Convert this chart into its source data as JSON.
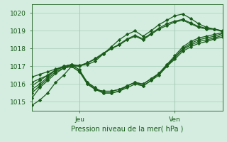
{
  "title": "Pression niveau de la mer( hPa )",
  "ylim": [
    1014.5,
    1020.5
  ],
  "yticks": [
    1015,
    1016,
    1017,
    1018,
    1019,
    1020
  ],
  "xlim": [
    0,
    48
  ],
  "xtick_positions": [
    12,
    36
  ],
  "xtick_labels": [
    "Jeu",
    "Ven"
  ],
  "vlines": [
    12,
    36
  ],
  "bg_color": "#d4ede0",
  "grid_color": "#a8ccb8",
  "line_color": "#1a5c1a",
  "line_width": 0.9,
  "marker": "D",
  "marker_size": 2.2,
  "series": [
    [
      1014.8,
      1015.1,
      1015.5,
      1016.1,
      1016.5,
      1017.0,
      1017.05,
      1017.1,
      1017.3,
      1017.7,
      1018.1,
      1018.5,
      1018.8,
      1019.0,
      1018.7,
      1019.0,
      1019.35,
      1019.6,
      1019.85,
      1019.95,
      1019.7,
      1019.4,
      1019.2,
      1019.1,
      1019.0
    ],
    [
      1015.2,
      1015.8,
      1016.2,
      1016.6,
      1016.9,
      1017.0,
      1016.7,
      1016.1,
      1015.8,
      1015.5,
      1015.5,
      1015.6,
      1015.9,
      1016.1,
      1015.9,
      1016.2,
      1016.6,
      1017.1,
      1017.6,
      1018.1,
      1018.4,
      1018.6,
      1018.7,
      1018.8,
      1018.9
    ],
    [
      1015.5,
      1015.9,
      1016.3,
      1016.7,
      1016.9,
      1017.0,
      1016.7,
      1016.0,
      1015.7,
      1015.5,
      1015.5,
      1015.6,
      1015.8,
      1016.0,
      1015.9,
      1016.2,
      1016.5,
      1017.0,
      1017.5,
      1018.0,
      1018.3,
      1018.5,
      1018.6,
      1018.7,
      1018.85
    ],
    [
      1015.7,
      1016.0,
      1016.4,
      1016.8,
      1017.0,
      1017.1,
      1016.8,
      1016.0,
      1015.7,
      1015.6,
      1015.6,
      1015.7,
      1015.9,
      1016.1,
      1016.0,
      1016.3,
      1016.6,
      1017.1,
      1017.5,
      1017.95,
      1018.2,
      1018.4,
      1018.5,
      1018.6,
      1018.75
    ],
    [
      1015.9,
      1016.2,
      1016.5,
      1016.8,
      1017.0,
      1017.1,
      1016.8,
      1016.1,
      1015.7,
      1015.6,
      1015.6,
      1015.7,
      1015.9,
      1016.1,
      1016.0,
      1016.3,
      1016.6,
      1017.0,
      1017.4,
      1017.85,
      1018.1,
      1018.3,
      1018.4,
      1018.55,
      1018.65
    ],
    [
      1016.1,
      1016.3,
      1016.5,
      1016.8,
      1016.95,
      1017.05,
      1017.0,
      1017.2,
      1017.4,
      1017.7,
      1018.0,
      1018.2,
      1018.5,
      1018.7,
      1018.5,
      1018.8,
      1019.1,
      1019.3,
      1019.5,
      1019.6,
      1019.4,
      1019.2,
      1019.1,
      1019.1,
      1018.95
    ],
    [
      1016.4,
      1016.55,
      1016.7,
      1016.85,
      1017.0,
      1017.1,
      1017.05,
      1017.2,
      1017.45,
      1017.75,
      1018.0,
      1018.25,
      1018.55,
      1018.75,
      1018.55,
      1018.85,
      1019.15,
      1019.4,
      1019.55,
      1019.65,
      1019.45,
      1019.25,
      1019.15,
      1019.1,
      1019.0
    ]
  ]
}
